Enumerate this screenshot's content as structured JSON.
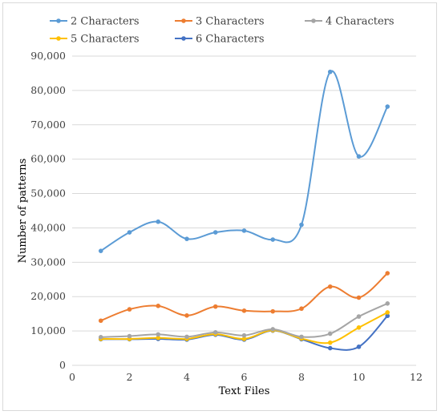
{
  "chart_data": {
    "type": "line",
    "title": "",
    "xlabel": "Text Files",
    "ylabel": "Number of patterns",
    "xlim": [
      0,
      12
    ],
    "ylim": [
      0,
      90000
    ],
    "x_ticks": [
      "0",
      "2",
      "4",
      "6",
      "8",
      "10",
      "12"
    ],
    "y_ticks": [
      "0",
      "10,000",
      "20,000",
      "30,000",
      "40,000",
      "50,000",
      "60,000",
      "70,000",
      "80,000",
      "90,000"
    ],
    "grid": "horizontal",
    "smooth": true,
    "legend_position": "top",
    "x": [
      1,
      2,
      3,
      4,
      5,
      6,
      7,
      8,
      9,
      10,
      11
    ],
    "series": [
      {
        "name": "2 Characters",
        "color": "#5b9bd5",
        "values": [
          33300,
          38700,
          41800,
          36800,
          38700,
          39200,
          36600,
          40900,
          85400,
          60800,
          75300
        ]
      },
      {
        "name": "3 Characters",
        "color": "#ed7d31",
        "values": [
          13000,
          16300,
          17300,
          14500,
          17100,
          15900,
          15700,
          16500,
          22900,
          19700,
          26800
        ]
      },
      {
        "name": "4 Characters",
        "color": "#a5a5a5",
        "values": [
          8200,
          8500,
          9000,
          8300,
          9600,
          8700,
          10500,
          8300,
          9200,
          14200,
          18000
        ]
      },
      {
        "name": "5 Characters",
        "color": "#ffc000",
        "values": [
          7700,
          7700,
          8000,
          7700,
          9100,
          7700,
          10200,
          7800,
          6600,
          11000,
          15400
        ]
      },
      {
        "name": "6 Characters",
        "color": "#4472c4",
        "values": [
          7600,
          7600,
          7700,
          7500,
          8900,
          7500,
          10100,
          7600,
          5000,
          5400,
          14400
        ]
      }
    ]
  }
}
